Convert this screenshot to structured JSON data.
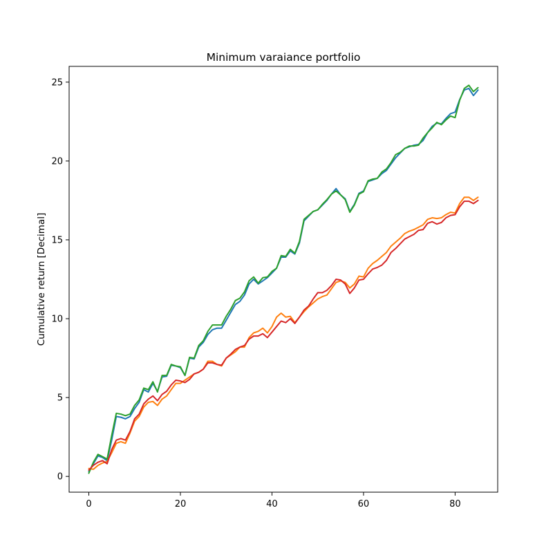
{
  "chart_data": {
    "type": "line",
    "title": "Minimum varaiance portfolio",
    "xlabel": "",
    "ylabel": "Cumulative return [Decimal]",
    "xlim": [
      -4.3,
      89.3
    ],
    "ylim": [
      -1.0,
      26.0
    ],
    "x_ticks": [
      0,
      20,
      40,
      60,
      80
    ],
    "y_ticks": [
      0,
      5,
      10,
      15,
      20,
      25
    ],
    "grid": false,
    "x": [
      0,
      1,
      2,
      3,
      4,
      5,
      6,
      7,
      8,
      9,
      10,
      11,
      12,
      13,
      14,
      15,
      16,
      17,
      18,
      19,
      20,
      21,
      22,
      23,
      24,
      25,
      26,
      27,
      28,
      29,
      30,
      31,
      32,
      33,
      34,
      35,
      36,
      37,
      38,
      39,
      40,
      41,
      42,
      43,
      44,
      45,
      46,
      47,
      48,
      49,
      50,
      51,
      52,
      53,
      54,
      55,
      56,
      57,
      58,
      59,
      60,
      61,
      62,
      63,
      64,
      65,
      66,
      67,
      68,
      69,
      70,
      71,
      72,
      73,
      74,
      75,
      76,
      77,
      78,
      79,
      80,
      81,
      82,
      83,
      84,
      85
    ],
    "series": [
      {
        "color": "#1f77b4",
        "values": [
          0.3,
          0.8,
          1.3,
          1.2,
          1.0,
          2.3,
          3.8,
          3.75,
          3.65,
          3.8,
          4.3,
          4.7,
          5.5,
          5.35,
          5.9,
          5.4,
          6.3,
          6.35,
          7.05,
          7.0,
          6.9,
          6.4,
          7.5,
          7.45,
          8.2,
          8.5,
          9.0,
          9.3,
          9.4,
          9.4,
          9.9,
          10.4,
          10.9,
          11.1,
          11.5,
          12.2,
          12.5,
          12.2,
          12.4,
          12.6,
          12.9,
          13.2,
          13.9,
          13.9,
          14.3,
          14.1,
          14.8,
          16.2,
          16.5,
          16.8,
          16.9,
          17.2,
          17.5,
          17.9,
          18.25,
          17.85,
          17.6,
          16.8,
          17.25,
          17.95,
          18.1,
          18.7,
          18.8,
          18.9,
          19.2,
          19.4,
          19.8,
          20.2,
          20.5,
          20.8,
          20.9,
          21.0,
          21.05,
          21.3,
          21.8,
          22.2,
          22.4,
          22.35,
          22.7,
          23.0,
          23.1,
          23.9,
          24.5,
          24.6,
          24.15,
          24.5
        ]
      },
      {
        "color": "#ff7f0e",
        "values": [
          0.5,
          0.45,
          0.7,
          0.85,
          0.95,
          1.5,
          2.1,
          2.2,
          2.1,
          2.75,
          3.5,
          3.8,
          4.4,
          4.7,
          4.75,
          4.5,
          4.9,
          5.1,
          5.5,
          5.9,
          5.9,
          6.1,
          6.3,
          6.5,
          6.6,
          6.8,
          7.3,
          7.3,
          7.1,
          7.0,
          7.5,
          7.7,
          7.9,
          8.2,
          8.2,
          8.8,
          9.1,
          9.2,
          9.4,
          9.1,
          9.5,
          10.1,
          10.35,
          10.1,
          10.15,
          9.75,
          10.1,
          10.45,
          10.75,
          11.0,
          11.25,
          11.4,
          11.5,
          11.9,
          12.3,
          12.4,
          12.3,
          11.95,
          12.2,
          12.7,
          12.65,
          13.2,
          13.5,
          13.7,
          13.95,
          14.2,
          14.6,
          14.85,
          15.1,
          15.4,
          15.55,
          15.65,
          15.8,
          15.95,
          16.3,
          16.4,
          16.35,
          16.4,
          16.6,
          16.75,
          16.7,
          17.3,
          17.7,
          17.7,
          17.5,
          17.7
        ]
      },
      {
        "color": "#2ca02c",
        "values": [
          0.2,
          0.9,
          1.4,
          1.25,
          1.1,
          2.6,
          4.0,
          3.95,
          3.85,
          3.95,
          4.5,
          4.85,
          5.6,
          5.5,
          6.0,
          5.35,
          6.4,
          6.4,
          7.1,
          7.0,
          6.95,
          6.4,
          7.55,
          7.5,
          8.3,
          8.6,
          9.2,
          9.6,
          9.6,
          9.6,
          10.15,
          10.6,
          11.15,
          11.3,
          11.7,
          12.4,
          12.65,
          12.25,
          12.6,
          12.65,
          13.0,
          13.2,
          14.0,
          13.95,
          14.4,
          14.15,
          14.9,
          16.3,
          16.55,
          16.8,
          16.9,
          17.25,
          17.55,
          17.9,
          18.1,
          17.85,
          17.55,
          16.75,
          17.2,
          17.9,
          18.05,
          18.75,
          18.85,
          18.9,
          19.3,
          19.5,
          19.9,
          20.4,
          20.55,
          20.8,
          20.95,
          20.95,
          21.0,
          21.45,
          21.8,
          22.1,
          22.45,
          22.3,
          22.6,
          22.85,
          22.75,
          23.85,
          24.6,
          24.8,
          24.4,
          24.65
        ]
      },
      {
        "color": "#d62728",
        "values": [
          0.4,
          0.7,
          0.9,
          1.0,
          0.8,
          1.7,
          2.3,
          2.4,
          2.3,
          2.85,
          3.65,
          3.95,
          4.6,
          4.9,
          5.1,
          4.8,
          5.2,
          5.4,
          5.8,
          6.1,
          6.05,
          5.95,
          6.15,
          6.5,
          6.6,
          6.8,
          7.2,
          7.2,
          7.1,
          7.05,
          7.5,
          7.75,
          8.05,
          8.2,
          8.3,
          8.7,
          8.9,
          8.9,
          9.05,
          8.8,
          9.15,
          9.5,
          9.85,
          9.75,
          10.0,
          9.7,
          10.1,
          10.55,
          10.8,
          11.25,
          11.65,
          11.65,
          11.8,
          12.1,
          12.5,
          12.45,
          12.2,
          11.6,
          11.95,
          12.45,
          12.5,
          12.85,
          13.15,
          13.25,
          13.4,
          13.7,
          14.2,
          14.45,
          14.75,
          15.05,
          15.2,
          15.35,
          15.6,
          15.65,
          16.05,
          16.15,
          16.0,
          16.1,
          16.4,
          16.55,
          16.6,
          17.1,
          17.45,
          17.45,
          17.3,
          17.5
        ]
      }
    ]
  }
}
